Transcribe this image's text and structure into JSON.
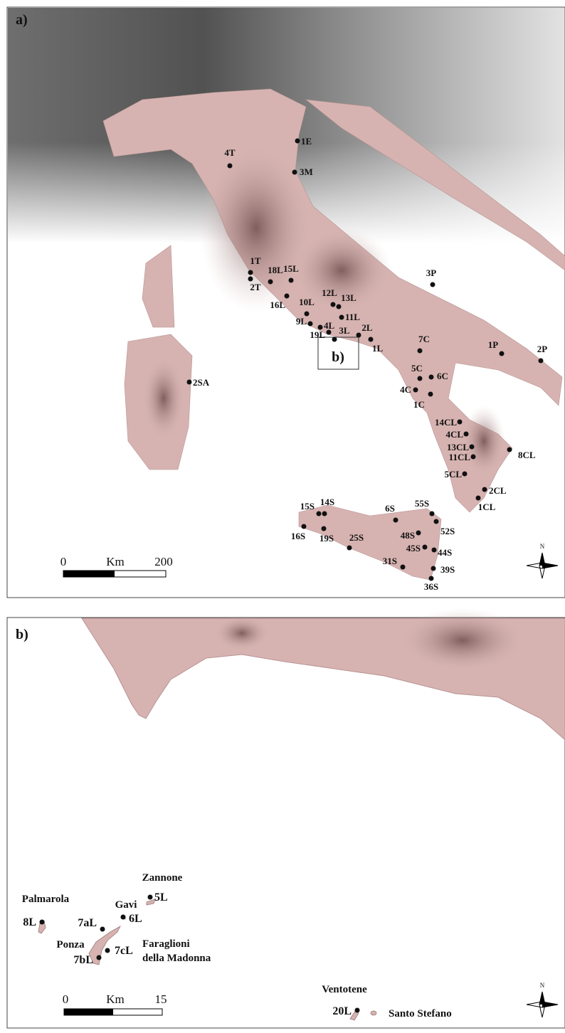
{
  "panel_a": {
    "label": "a)",
    "inset_label": "b)",
    "north": "N",
    "scale": {
      "start": "0",
      "unit": "Km",
      "end": "200"
    },
    "sites": [
      "1E",
      "4T",
      "3M",
      "1T",
      "2T",
      "18L",
      "15L",
      "16L",
      "12L",
      "13L",
      "10L",
      "11L",
      "9L",
      "4L",
      "19L",
      "3L",
      "2L",
      "1L",
      "3P",
      "7C",
      "1P",
      "2P",
      "5C",
      "6C",
      "4C",
      "1C",
      "14CL",
      "4CL",
      "13CL",
      "11CL",
      "8CL",
      "5CL",
      "2CL",
      "1CL",
      "55S",
      "6S",
      "52S",
      "15S",
      "14S",
      "16S",
      "19S",
      "25S",
      "48S",
      "45S",
      "44S",
      "31S",
      "39S",
      "36S",
      "2SA"
    ]
  },
  "panel_b": {
    "label": "b)",
    "north": "N",
    "scale": {
      "start": "0",
      "unit": "Km",
      "end": "15"
    },
    "sites": [
      "5L",
      "6L",
      "8L",
      "7aL",
      "7cL",
      "7bL",
      "20L"
    ],
    "islands": [
      "Zannone",
      "Palmarola",
      "Gavi",
      "Ponza",
      "Ventotene",
      "Santo Stefano"
    ],
    "islet_lines": [
      "Faraglioni",
      "della Madonna"
    ]
  }
}
